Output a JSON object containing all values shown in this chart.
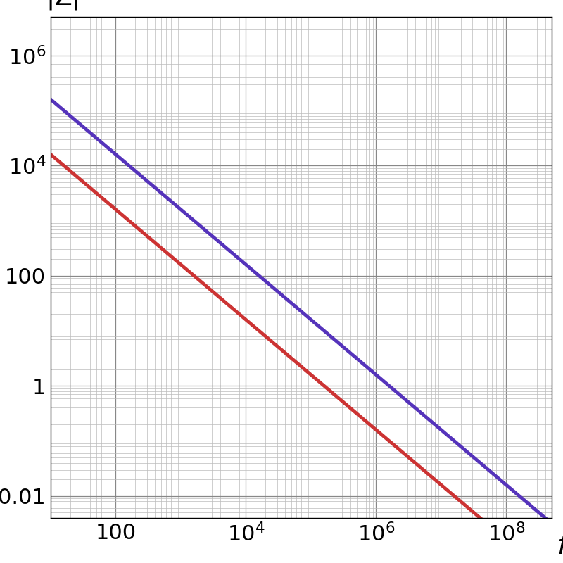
{
  "xlabel": "f",
  "ylabel": "|Z|",
  "xlim": [
    10,
    500000000.0
  ],
  "ylim": [
    0.004,
    5000000.0
  ],
  "C1": 1e-06,
  "C2": 1e-07,
  "C1_color": "#CC3333",
  "C2_color": "#5533BB",
  "linewidth": 3.5,
  "bg_color": "#FFFFFF",
  "grid_minor_color": "#BBBBBB",
  "grid_major_color": "#888888",
  "xtick_positions": [
    100,
    10000,
    1000000,
    100000000
  ],
  "xtick_labels": [
    "100",
    "10$^4$",
    "10$^6$",
    "10$^8$"
  ],
  "ytick_positions": [
    0.01,
    1,
    100,
    10000,
    1000000
  ],
  "ytick_labels": [
    "0.01",
    "1",
    "100",
    "10$^4$",
    "10$^6$"
  ],
  "xlabel_fontsize": 28,
  "ylabel_fontsize": 26,
  "tick_fontsize": 22
}
